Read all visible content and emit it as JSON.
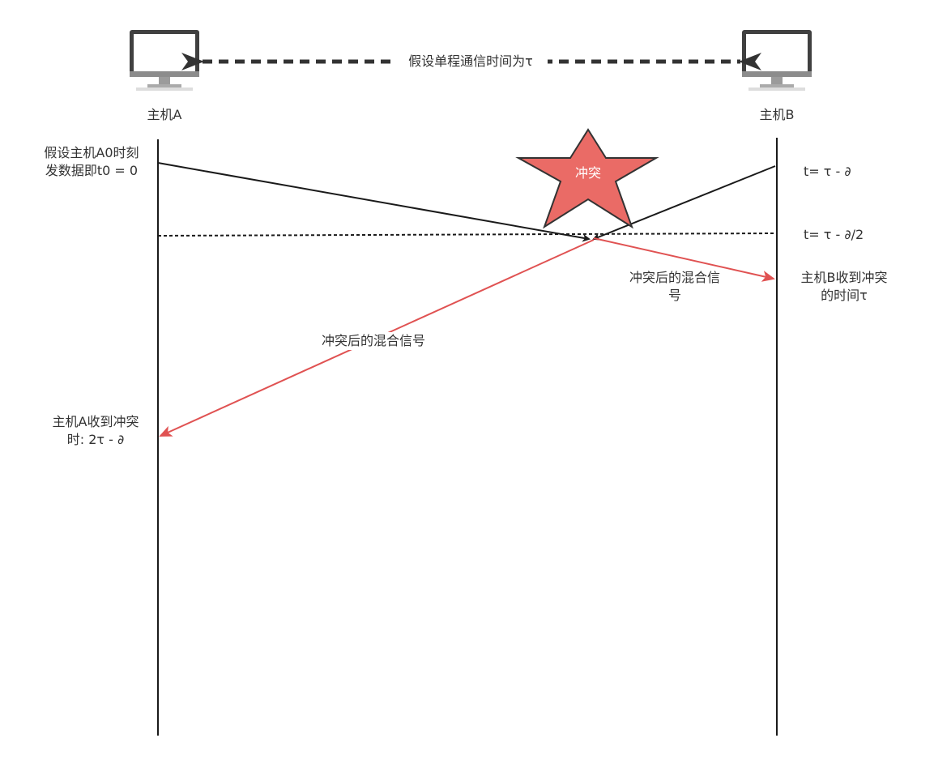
{
  "title_arrow_label": "假设单程通信时间为τ",
  "hosts": {
    "a": {
      "label": "主机A"
    },
    "b": {
      "label": "主机B"
    }
  },
  "labels": {
    "a_start": "假设主机A0时刻\n发数据即t0 = 0",
    "b_start": "t= τ - ∂",
    "meet_time": "t= τ - ∂/2",
    "collision": "冲突",
    "mixed_signal_right": "冲突后的混合信\n号",
    "b_receive": "主机B收到冲突\n的时间τ",
    "mixed_signal_left": "冲突后的混合信号",
    "a_receive": "主机A收到冲突\n时: 2τ - ∂"
  },
  "colors": {
    "line": "#1a1a1a",
    "signal": "#e05252",
    "star_fill": "#ea6b66",
    "star_stroke": "#333333",
    "monitor_frame": "#404040",
    "monitor_stand": "#9b9b9b"
  },
  "icons": [
    "computer-icon",
    "computer-icon"
  ]
}
